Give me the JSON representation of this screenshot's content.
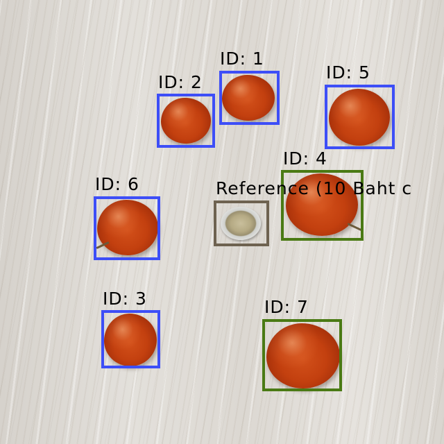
{
  "colors": {
    "fruit_box": "#3d4ef7",
    "large_fruit_box": "#4a7a14",
    "reference_box": "#6e6250"
  },
  "detections": [
    {
      "label": "ID: 1",
      "color": "#3d4ef7"
    },
    {
      "label": "ID: 2",
      "color": "#3d4ef7"
    },
    {
      "label": "ID: 3",
      "color": "#3d4ef7"
    },
    {
      "label": "ID: 4",
      "color": "#4a7a14"
    },
    {
      "label": "ID: 5",
      "color": "#3d4ef7"
    },
    {
      "label": "ID: 6",
      "color": "#3d4ef7"
    },
    {
      "label": "ID: 7",
      "color": "#4a7a14"
    }
  ],
  "reference": {
    "label": "Reference (10 Baht c",
    "color": "#6e6250"
  }
}
